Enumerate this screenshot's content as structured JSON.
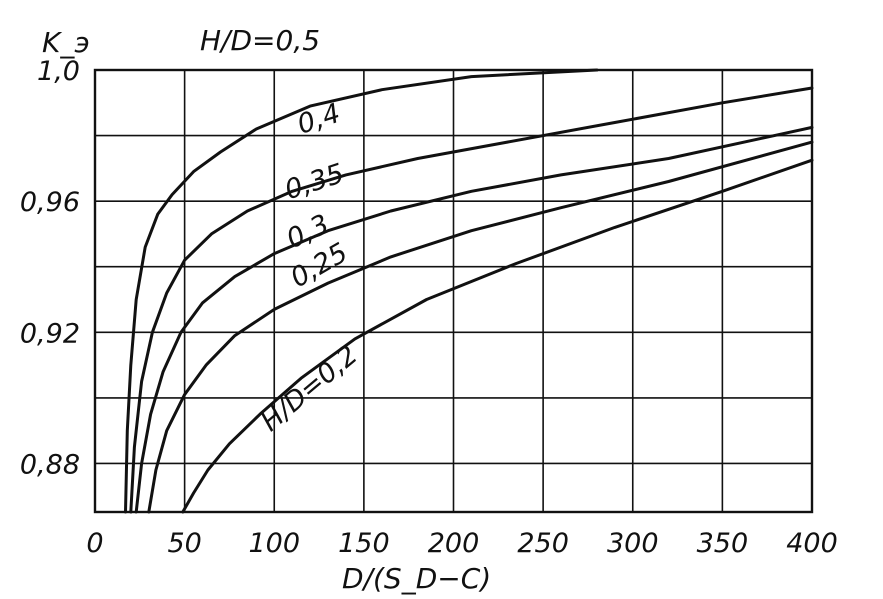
{
  "chart_data": {
    "type": "line",
    "title": "H/D=0,5",
    "xlabel": "D/(S_D−C)",
    "ylabel": "K_э",
    "xlim": [
      0,
      400
    ],
    "ylim": [
      0.8652,
      1.0
    ],
    "x_ticks": [
      {
        "value": 0,
        "label": "0"
      },
      {
        "value": 50,
        "label": "50"
      },
      {
        "value": 100,
        "label": "100"
      },
      {
        "value": 150,
        "label": "150"
      },
      {
        "value": 200,
        "label": "200"
      },
      {
        "value": 250,
        "label": "250"
      },
      {
        "value": 300,
        "label": "300"
      },
      {
        "value": 350,
        "label": "350"
      },
      {
        "value": 400,
        "label": "400"
      }
    ],
    "y_ticks": [
      {
        "value": 0.88,
        "label": "0,88"
      },
      {
        "value": 0.92,
        "label": "0,92"
      },
      {
        "value": 0.96,
        "label": "0,96"
      },
      {
        "value": 1.0,
        "label": "1,0"
      }
    ],
    "y_gridlines": [
      0.88,
      0.9,
      0.92,
      0.94,
      0.96,
      0.98,
      1.0
    ],
    "grid": true,
    "series": [
      {
        "name": "0,5",
        "x": [
          17,
          18,
          20,
          23,
          28,
          35,
          43,
          55,
          70,
          90,
          120,
          160,
          210,
          280
        ],
        "y": [
          0.8652,
          0.89,
          0.91,
          0.93,
          0.946,
          0.956,
          0.962,
          0.969,
          0.975,
          0.982,
          0.989,
          0.994,
          0.998,
          1.0
        ]
      },
      {
        "name": "0,4",
        "x": [
          20,
          22,
          26,
          32,
          40,
          50,
          65,
          85,
          110,
          140,
          180,
          230,
          290,
          350,
          400
        ],
        "y": [
          0.8652,
          0.885,
          0.905,
          0.92,
          0.932,
          0.942,
          0.95,
          0.957,
          0.963,
          0.968,
          0.973,
          0.978,
          0.984,
          0.99,
          0.9945
        ]
      },
      {
        "name": "0,35",
        "x": [
          23,
          26,
          31,
          38,
          48,
          60,
          78,
          100,
          130,
          165,
          210,
          260,
          320,
          400
        ],
        "y": [
          0.8652,
          0.88,
          0.895,
          0.908,
          0.92,
          0.929,
          0.937,
          0.944,
          0.951,
          0.957,
          0.963,
          0.968,
          0.973,
          0.9825
        ]
      },
      {
        "name": "0,3",
        "x": [
          30,
          34,
          40,
          50,
          62,
          78,
          100,
          130,
          165,
          210,
          260,
          320,
          400
        ],
        "y": [
          0.8652,
          0.878,
          0.89,
          0.901,
          0.91,
          0.919,
          0.927,
          0.935,
          0.943,
          0.951,
          0.958,
          0.966,
          0.978
        ]
      },
      {
        "name": "H/D=0,2",
        "x": [
          49,
          55,
          63,
          75,
          92,
          115,
          145,
          185,
          235,
          290,
          350,
          400
        ],
        "y": [
          0.8652,
          0.871,
          0.878,
          0.886,
          0.895,
          0.906,
          0.918,
          0.93,
          0.941,
          0.952,
          0.963,
          0.9725
        ]
      }
    ],
    "curve_labels": [
      {
        "text": "0,4",
        "x": 115,
        "y": 0.9805,
        "rotate": -18
      },
      {
        "text": "0,35",
        "x": 108,
        "y": 0.9605,
        "rotate": -18
      },
      {
        "text": "0,3",
        "x": 110,
        "y": 0.9455,
        "rotate": -25
      },
      {
        "text": "0,25",
        "x": 113,
        "y": 0.9335,
        "rotate": -30
      },
      {
        "text": "H/D=0,2",
        "x": 98,
        "y": 0.8895,
        "rotate": -40
      }
    ]
  }
}
